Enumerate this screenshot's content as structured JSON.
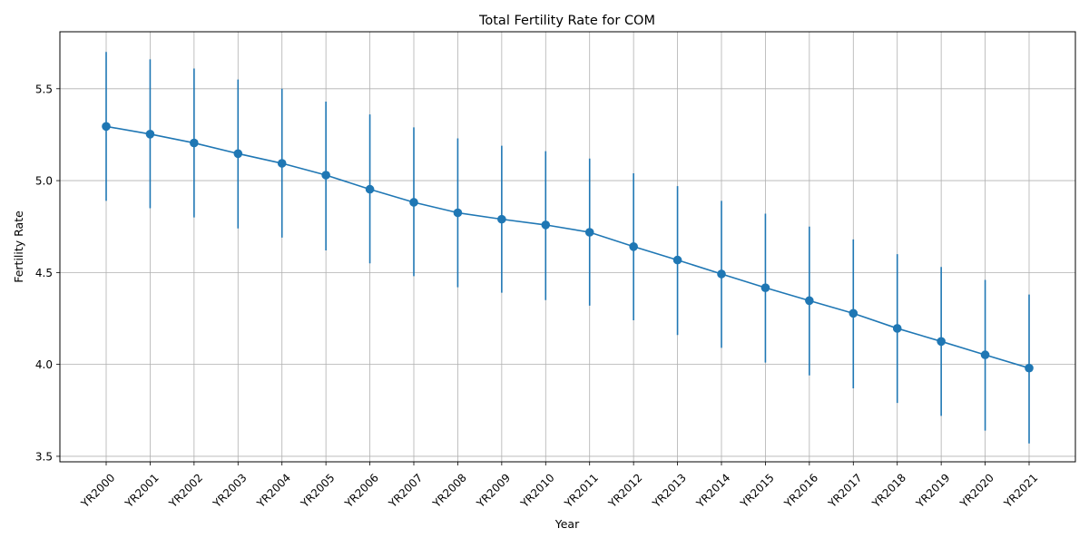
{
  "chart_data": {
    "type": "line",
    "title": "Total Fertility Rate for COM",
    "xlabel": "Year",
    "ylabel": "Fertility Rate",
    "categories": [
      "YR2000",
      "YR2001",
      "YR2002",
      "YR2003",
      "YR2004",
      "YR2005",
      "YR2006",
      "YR2007",
      "YR2008",
      "YR2009",
      "YR2010",
      "YR2011",
      "YR2012",
      "YR2013",
      "YR2014",
      "YR2015",
      "YR2016",
      "YR2017",
      "YR2018",
      "YR2019",
      "YR2020",
      "YR2021"
    ],
    "series": [
      {
        "values": [
          5.295,
          5.253,
          5.205,
          5.147,
          5.094,
          5.03,
          4.953,
          4.882,
          4.825,
          4.79,
          4.759,
          4.719,
          4.641,
          4.568,
          4.492,
          4.417,
          4.347,
          4.278,
          4.196,
          4.125,
          4.052,
          3.98
        ],
        "error_low": [
          4.89,
          4.85,
          4.8,
          4.74,
          4.69,
          4.62,
          4.55,
          4.48,
          4.42,
          4.39,
          4.35,
          4.32,
          4.24,
          4.16,
          4.09,
          4.01,
          3.94,
          3.87,
          3.79,
          3.72,
          3.64,
          3.57
        ],
        "error_high": [
          5.7,
          5.66,
          5.61,
          5.55,
          5.5,
          5.43,
          5.36,
          5.29,
          5.23,
          5.19,
          5.16,
          5.12,
          5.04,
          4.97,
          4.89,
          4.82,
          4.75,
          4.68,
          4.6,
          4.53,
          4.46,
          4.38
        ],
        "color": "#1f77b4"
      }
    ],
    "ylim": [
      3.47,
      5.81
    ],
    "yticks": [
      "3.5",
      "4.0",
      "4.5",
      "5.0",
      "5.5"
    ],
    "grid": true,
    "legend": "none"
  }
}
